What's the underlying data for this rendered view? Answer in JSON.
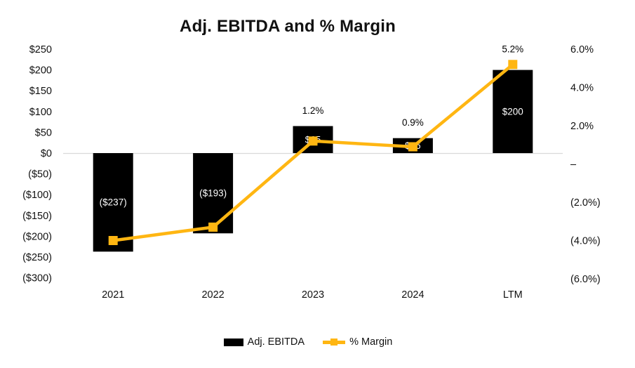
{
  "chart_data": {
    "type": "bar",
    "subtype": "combo-bar-line",
    "title": "Adj. EBITDA and % Margin",
    "categories": [
      "2021",
      "2022",
      "2023",
      "2024",
      "LTM"
    ],
    "series": [
      {
        "name": "Adj. EBITDA",
        "type": "bar",
        "axis": "left",
        "color": "#000000",
        "values": [
          -237,
          -193,
          65,
          36,
          200
        ],
        "labels": [
          "($237)",
          "($193)",
          "$65",
          "$36",
          "$200"
        ],
        "label_color": "#FFFFFF"
      },
      {
        "name": "% Margin",
        "type": "line",
        "axis": "right",
        "color": "#FFB612",
        "values": [
          -4.0,
          -3.3,
          1.2,
          0.9,
          5.2
        ],
        "labels": [
          null,
          null,
          "1.2%",
          "0.9%",
          "5.2%"
        ],
        "label_color": "#000000"
      }
    ],
    "left_axis": {
      "min": -300,
      "max": 250,
      "ticks": [
        {
          "label": "$250",
          "value": 250
        },
        {
          "label": "$200",
          "value": 200
        },
        {
          "label": "$150",
          "value": 150
        },
        {
          "label": "$100",
          "value": 100
        },
        {
          "label": "$50",
          "value": 50
        },
        {
          "label": "$0",
          "value": 0
        },
        {
          "label": "($50)",
          "value": -50
        },
        {
          "label": "($100)",
          "value": -100
        },
        {
          "label": "($150)",
          "value": -150
        },
        {
          "label": "($200)",
          "value": -200
        },
        {
          "label": "($250)",
          "value": -250
        },
        {
          "label": "($300)",
          "value": -300
        }
      ]
    },
    "right_axis": {
      "min": -6,
      "max": 6,
      "ticks": [
        {
          "label": "6.0%",
          "value": 6
        },
        {
          "label": "4.0%",
          "value": 4
        },
        {
          "label": "2.0%",
          "value": 2
        },
        {
          "label": "–",
          "value": 0
        },
        {
          "label": "(2.0%)",
          "value": -2
        },
        {
          "label": "(4.0%)",
          "value": -4
        },
        {
          "label": "(6.0%)",
          "value": -6
        }
      ]
    },
    "gridlines": "zero-line-only",
    "legend_position": "bottom",
    "colors": {
      "bar": "#000000",
      "line": "#FFB612",
      "zero_line": "#D9D9D9",
      "text": "#111111"
    }
  }
}
